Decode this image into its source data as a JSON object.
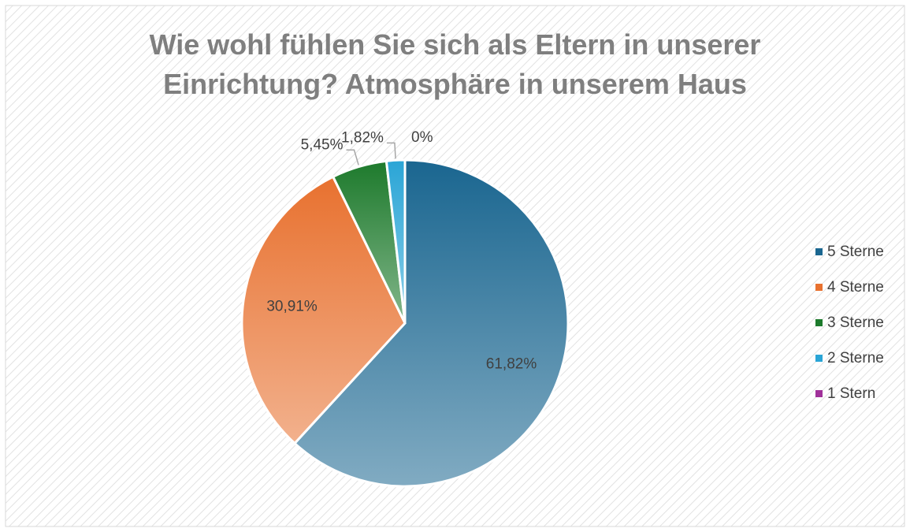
{
  "chart_data": {
    "type": "pie",
    "title": "Wie wohl fühlen Sie sich als Eltern in unserer Einrichtung? Atmosphäre in unserem Haus",
    "categories": [
      "5 Sterne",
      "4 Sterne",
      "3 Sterne",
      "2 Sterne",
      "1 Stern"
    ],
    "values": [
      61.82,
      30.91,
      5.45,
      1.82,
      0
    ],
    "value_labels": [
      "61,82%",
      "30,91%",
      "5,45%",
      "1,82%",
      "0%"
    ],
    "colors": [
      "#1a6690",
      "#e8712f",
      "#1d7a2c",
      "#2aa5d6",
      "#a0319a"
    ],
    "legend": "right"
  }
}
